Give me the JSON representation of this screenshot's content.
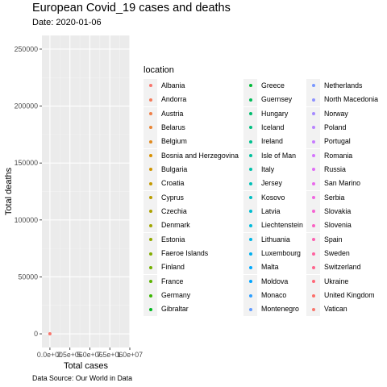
{
  "chart_data": {
    "type": "scatter",
    "title": "European Covid_19 cases and deaths",
    "subtitle": "Date: 2020-01-06",
    "xlabel": "Total cases",
    "ylabel": "Total deaths",
    "caption": "Data Source: Our World in Data",
    "xlim": [
      -1000000,
      10000000
    ],
    "ylim": [
      -12000,
      262000
    ],
    "x_ticks": [
      0,
      2500000,
      5000000,
      7500000,
      10000000
    ],
    "x_tick_labels": [
      "0.0e+00",
      "2.5e+06",
      "5.0e+06",
      "7.5e+06",
      "1.0e+07"
    ],
    "y_ticks": [
      0,
      50000,
      100000,
      150000,
      200000,
      250000
    ],
    "y_tick_labels": [
      "0",
      "50000",
      "100000",
      "150000",
      "200000",
      "250000"
    ],
    "grid": true,
    "legend_title": "location",
    "legend_position": "right",
    "series": [
      {
        "name": "Albania",
        "color": "#F8766D"
      },
      {
        "name": "Andorra",
        "color": "#F47B5A"
      },
      {
        "name": "Austria",
        "color": "#EF7F48"
      },
      {
        "name": "Belarus",
        "color": "#E88535"
      },
      {
        "name": "Belgium",
        "color": "#E18A1F"
      },
      {
        "name": "Bosnia and Herzegovina",
        "color": "#D89000"
      },
      {
        "name": "Bulgaria",
        "color": "#CF9400"
      },
      {
        "name": "Croatia",
        "color": "#C49A00"
      },
      {
        "name": "Cyprus",
        "color": "#B99E00"
      },
      {
        "name": "Czechia",
        "color": "#ADA200"
      },
      {
        "name": "Denmark",
        "color": "#A0A600"
      },
      {
        "name": "Estonia",
        "color": "#92A900"
      },
      {
        "name": "Faeroe Islands",
        "color": "#83AD00"
      },
      {
        "name": "Finland",
        "color": "#72B000"
      },
      {
        "name": "France",
        "color": "#5BB300"
      },
      {
        "name": "Germany",
        "color": "#39B600"
      },
      {
        "name": "Gibraltar",
        "color": "#00B81F"
      },
      {
        "name": "Greece",
        "color": "#00BA38"
      },
      {
        "name": "Guernsey",
        "color": "#00BC59"
      },
      {
        "name": "Hungary",
        "color": "#00BD6E"
      },
      {
        "name": "Iceland",
        "color": "#00BF80"
      },
      {
        "name": "Ireland",
        "color": "#00C08E"
      },
      {
        "name": "Isle of Man",
        "color": "#00C19C"
      },
      {
        "name": "Italy",
        "color": "#00C1AA"
      },
      {
        "name": "Jersey",
        "color": "#00C0B8"
      },
      {
        "name": "Kosovo",
        "color": "#00BFC4"
      },
      {
        "name": "Latvia",
        "color": "#00BDD0"
      },
      {
        "name": "Liechtenstein",
        "color": "#00BADB"
      },
      {
        "name": "Lithuania",
        "color": "#00B6E6"
      },
      {
        "name": "Luxembourg",
        "color": "#00B0F0"
      },
      {
        "name": "Malta",
        "color": "#00A9FF"
      },
      {
        "name": "Moldova",
        "color": "#00A5FF"
      },
      {
        "name": "Monaco",
        "color": "#2E9FFF"
      },
      {
        "name": "Montenegro",
        "color": "#619CFF"
      },
      {
        "name": "Netherlands",
        "color": "#7997FF"
      },
      {
        "name": "North Macedonia",
        "color": "#8E92FF"
      },
      {
        "name": "Norway",
        "color": "#A58AFF"
      },
      {
        "name": "Poland",
        "color": "#B983FF"
      },
      {
        "name": "Portugal",
        "color": "#C77CFF"
      },
      {
        "name": "Romania",
        "color": "#D575FE"
      },
      {
        "name": "Russia",
        "color": "#E06DF6"
      },
      {
        "name": "San Marino",
        "color": "#E96AEC"
      },
      {
        "name": "Serbia",
        "color": "#F066E0"
      },
      {
        "name": "Slovakia",
        "color": "#F564D2"
      },
      {
        "name": "Slovenia",
        "color": "#FA62C3"
      },
      {
        "name": "Spain",
        "color": "#FD61B1"
      },
      {
        "name": "Sweden",
        "color": "#FF62A0"
      },
      {
        "name": "Switzerland",
        "color": "#FF648D"
      },
      {
        "name": "Ukraine",
        "color": "#FF6879"
      },
      {
        "name": "United Kingdom",
        "color": "#FC6F6A"
      },
      {
        "name": "Vatican",
        "color": "#F8766D"
      }
    ],
    "points": [
      {
        "location": "Albania",
        "x": 0,
        "y": 0
      }
    ]
  }
}
